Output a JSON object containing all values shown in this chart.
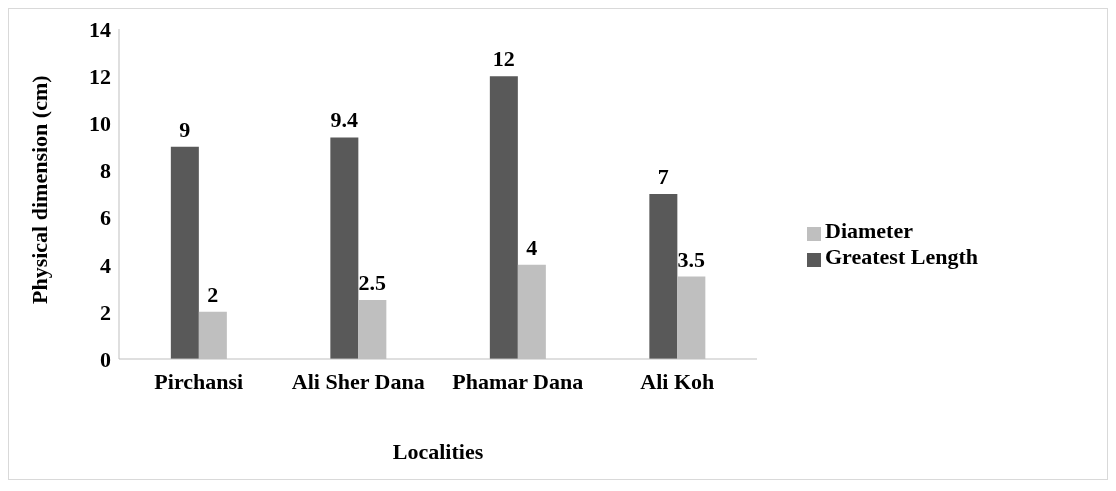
{
  "chart_data": {
    "type": "bar",
    "xlabel": "Localities",
    "ylabel": "Physical dimension (cm)",
    "categories": [
      "Pirchansi",
      "Ali Sher Dana",
      "Phamar Dana",
      "Ali Koh"
    ],
    "series": [
      {
        "name": "Greatest Length",
        "color": "#595959",
        "values": [
          9,
          9.4,
          12,
          7
        ]
      },
      {
        "name": "Diameter",
        "color": "#bfbfbf",
        "values": [
          2,
          2.5,
          4,
          3.5
        ]
      }
    ],
    "ylim": [
      0,
      14
    ],
    "yticks": [
      0,
      2,
      4,
      6,
      8,
      10,
      12,
      14
    ],
    "grid": false,
    "legend": "right",
    "data_labels": true
  }
}
